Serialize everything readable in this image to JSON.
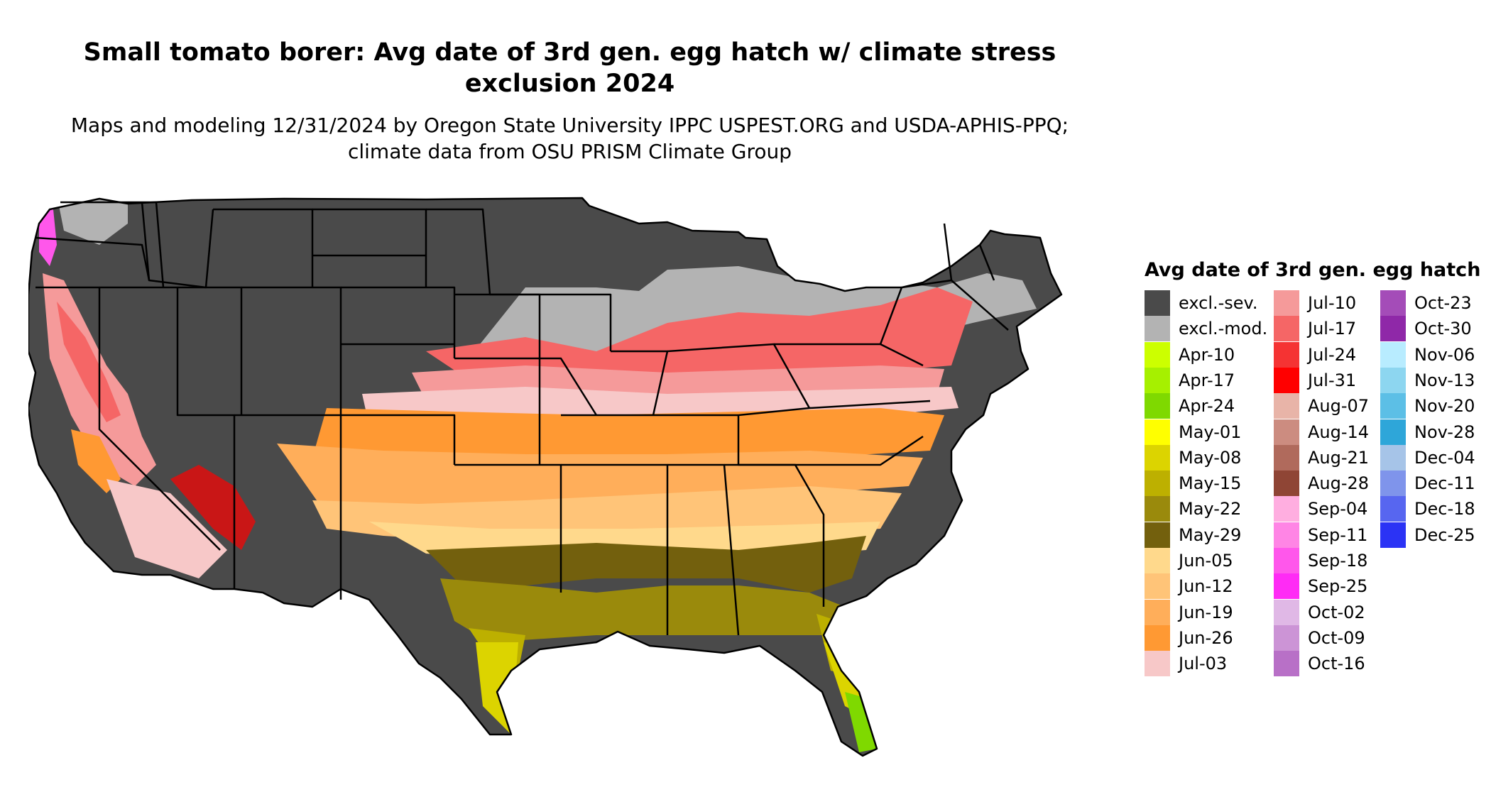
{
  "title": "Small tomato borer: Avg date of 3rd gen. egg hatch w/ climate stress exclusion 2024",
  "subtitle": "Maps and modeling 12/31/2024 by Oregon State University IPPC USPEST.ORG and USDA-APHIS-PPQ; climate data from OSU PRISM Climate Group",
  "legend": {
    "title": "Avg date of 3rd gen. egg hatch",
    "columns": [
      [
        {
          "label": "excl.-sev.",
          "color": "#4a4a4a"
        },
        {
          "label": "excl.-mod.",
          "color": "#b3b3b3"
        },
        {
          "label": "Apr-10",
          "color": "#ccff00"
        },
        {
          "label": "Apr-17",
          "color": "#a6f000"
        },
        {
          "label": "Apr-24",
          "color": "#7fd900"
        },
        {
          "label": "May-01",
          "color": "#ffff00"
        },
        {
          "label": "May-08",
          "color": "#dcd400"
        },
        {
          "label": "May-15",
          "color": "#bdb000"
        },
        {
          "label": "May-22",
          "color": "#9a8a0c"
        },
        {
          "label": "May-29",
          "color": "#73600d"
        },
        {
          "label": "Jun-05",
          "color": "#ffd98c"
        },
        {
          "label": "Jun-12",
          "color": "#ffc478"
        },
        {
          "label": "Jun-19",
          "color": "#ffae5a"
        },
        {
          "label": "Jun-26",
          "color": "#ff9933"
        },
        {
          "label": "Jul-03",
          "color": "#f7c8c8"
        }
      ],
      [
        {
          "label": "Jul-10",
          "color": "#f59a9a"
        },
        {
          "label": "Jul-17",
          "color": "#f56666"
        },
        {
          "label": "Jul-24",
          "color": "#f53333"
        },
        {
          "label": "Jul-31",
          "color": "#ff0000"
        },
        {
          "label": "Aug-07",
          "color": "#e8b4a8"
        },
        {
          "label": "Aug-14",
          "color": "#cc8c80"
        },
        {
          "label": "Aug-21",
          "color": "#b06a5c"
        },
        {
          "label": "Aug-28",
          "color": "#8f4535"
        },
        {
          "label": "Sep-04",
          "color": "#ffaee0"
        },
        {
          "label": "Sep-11",
          "color": "#ff85e5"
        },
        {
          "label": "Sep-18",
          "color": "#ff57eb"
        },
        {
          "label": "Sep-25",
          "color": "#ff2bf5"
        },
        {
          "label": "Oct-02",
          "color": "#e0b8e6"
        },
        {
          "label": "Oct-09",
          "color": "#cc94d6"
        },
        {
          "label": "Oct-16",
          "color": "#b870c7"
        }
      ],
      [
        {
          "label": "Oct-23",
          "color": "#a44cb8"
        },
        {
          "label": "Oct-30",
          "color": "#8f28a8"
        },
        {
          "label": "Nov-06",
          "color": "#b8ecff"
        },
        {
          "label": "Nov-13",
          "color": "#8dd6f0"
        },
        {
          "label": "Nov-20",
          "color": "#5cbfe6"
        },
        {
          "label": "Nov-28",
          "color": "#2ea6d9"
        },
        {
          "label": "Dec-04",
          "color": "#a6c4e8"
        },
        {
          "label": "Dec-11",
          "color": "#7f94eb"
        },
        {
          "label": "Dec-18",
          "color": "#5766f0"
        },
        {
          "label": "Dec-25",
          "color": "#2b33f5"
        }
      ]
    ]
  },
  "map": {
    "colors": {
      "excl_sev": "#4a4a4a",
      "excl_mod": "#b3b3b3",
      "state_border": "#000000"
    }
  }
}
